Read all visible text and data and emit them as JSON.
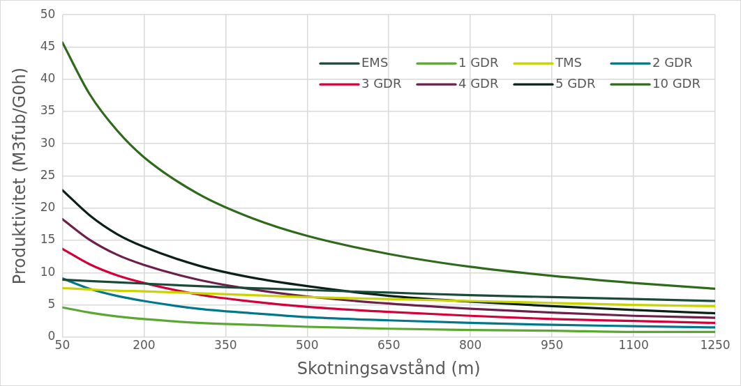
{
  "chart_data": {
    "type": "line",
    "xlabel": "Skotningsavstånd (m)",
    "ylabel": "Produktivitet (M3fub/G0h)",
    "x": [
      50,
      100,
      150,
      200,
      300,
      400,
      500,
      650,
      800,
      950,
      1100,
      1250
    ],
    "series": [
      {
        "name": "EMS",
        "color": "#1a4a38",
        "values": [
          8.9,
          8.7,
          8.5,
          8.3,
          7.9,
          7.6,
          7.3,
          6.9,
          6.5,
          6.2,
          5.9,
          5.6
        ]
      },
      {
        "name": "1 GDR",
        "color": "#5aa832",
        "values": [
          4.6,
          3.8,
          3.2,
          2.8,
          2.2,
          1.9,
          1.6,
          1.3,
          1.1,
          1.0,
          0.8,
          0.8
        ]
      },
      {
        "name": "TMS",
        "color": "#c8d400",
        "values": [
          7.6,
          7.4,
          7.2,
          7.1,
          6.8,
          6.5,
          6.2,
          5.9,
          5.6,
          5.3,
          5.0,
          4.8
        ]
      },
      {
        "name": "2 GDR",
        "color": "#00788a",
        "values": [
          9.1,
          7.5,
          6.4,
          5.6,
          4.4,
          3.7,
          3.1,
          2.6,
          2.2,
          1.9,
          1.7,
          1.5
        ]
      },
      {
        "name": "3 GDR",
        "color": "#d4003a",
        "values": [
          13.7,
          11.3,
          9.6,
          8.4,
          6.6,
          5.5,
          4.7,
          3.9,
          3.3,
          2.8,
          2.5,
          2.2
        ]
      },
      {
        "name": "4 GDR",
        "color": "#6d1f4a",
        "values": [
          18.3,
          15.1,
          12.8,
          11.2,
          8.9,
          7.4,
          6.3,
          5.2,
          4.4,
          3.8,
          3.3,
          3.0
        ]
      },
      {
        "name": "5 GDR",
        "color": "#0a2018",
        "values": [
          22.8,
          18.9,
          16.0,
          14.0,
          11.1,
          9.2,
          7.9,
          6.4,
          5.5,
          4.8,
          4.2,
          3.7
        ]
      },
      {
        "name": "10 GDR",
        "color": "#2e6a1a",
        "values": [
          45.7,
          37.7,
          32.1,
          27.9,
          22.2,
          18.4,
          15.7,
          12.9,
          10.9,
          9.5,
          8.4,
          7.5
        ]
      }
    ],
    "xlim": [
      50,
      1250
    ],
    "xticks": [
      50,
      200,
      350,
      500,
      650,
      800,
      950,
      1100,
      1250
    ],
    "ylim": [
      0,
      50
    ],
    "yticks": [
      0,
      5,
      10,
      15,
      20,
      25,
      30,
      35,
      40,
      45,
      50
    ],
    "grid": true,
    "legend": "top right",
    "marker": "none",
    "line_style": "solid"
  }
}
